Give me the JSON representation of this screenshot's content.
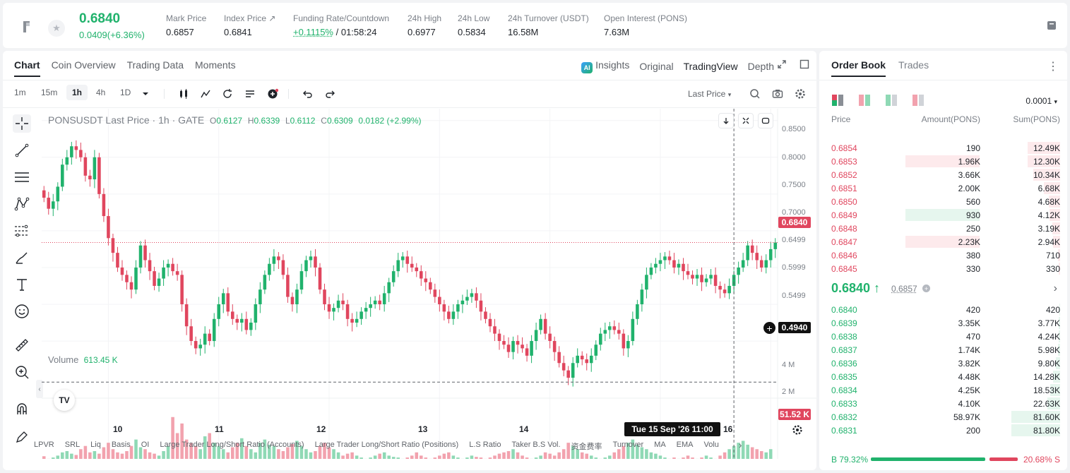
{
  "ticker": {
    "price": "0.6840",
    "change": "0.0409(+6.36%)",
    "stats": [
      {
        "label": "Mark Price",
        "value": "0.6857"
      },
      {
        "label": "Index Price ↗",
        "value": "0.6841"
      },
      {
        "label": "Funding Rate/Countdown",
        "value_green": "+0.1115%",
        "value": "/ 01:58:24"
      },
      {
        "label": "24h High",
        "value": "0.6977"
      },
      {
        "label": "24h Low",
        "value": "0.5834"
      },
      {
        "label": "24h Turnover (USDT)",
        "value": "16.58M"
      },
      {
        "label": "Open Interest (PONS)",
        "value": "7.63M"
      }
    ]
  },
  "chart_tabs": [
    "Chart",
    "Coin Overview",
    "Trading Data",
    "Moments"
  ],
  "chart_views": {
    "insights": "Insights",
    "original": "Original",
    "tradingview": "TradingView",
    "depth": "Depth"
  },
  "intervals": [
    "1m",
    "15m",
    "1h",
    "4h",
    "1D"
  ],
  "price_type": "Last Price",
  "legend": {
    "title": "PONSUSDT Last Price · 1h · GATE",
    "o_label": "O",
    "o": "0.6127",
    "h_label": "H",
    "h": "0.6339",
    "l_label": "L",
    "l": "0.6112",
    "c_label": "C",
    "c": "0.6309",
    "chg": "0.0182 (+2.99%)"
  },
  "volume": {
    "label": "Volume",
    "value": "613.45 K",
    "last_tag": "51.52 K"
  },
  "price_tags": {
    "last": "0.6840",
    "cross": "0.4940"
  },
  "crosshair_time": "Tue 15 Sep '26   11:00",
  "bottom_indicators": [
    "LPVR",
    "SRL",
    "Liq",
    "Basis",
    "OI",
    "Large Trader Long/Short Ratio (Accounts)",
    "Large Trader Long/Short Ratio (Positions)",
    "L.S Ratio",
    "Taker B.S Vol.",
    "资金费率",
    "Turnover",
    "MA",
    "EMA",
    "Volu"
  ],
  "chart_data": {
    "type": "candlestick",
    "title": "PONSUSDT Last Price · 1h · GATE",
    "x_labels": [
      "10",
      "11",
      "12",
      "13",
      "14",
      "15",
      "16"
    ],
    "x_label_index": [
      14,
      38,
      62,
      86,
      110,
      134,
      158
    ],
    "y_ticks": [
      "0.8500",
      "0.8000",
      "0.7500",
      "0.7000",
      "0.6499",
      "0.5999",
      "0.5499"
    ],
    "y_tick_values": [
      0.85,
      0.8,
      0.75,
      0.7,
      0.6499,
      0.5999,
      0.5499
    ],
    "ylim": [
      0.4722,
      0.8661
    ],
    "volume_ticks": [
      "4 M",
      "2 M"
    ],
    "volume_tick_values": [
      4000000,
      2000000
    ],
    "volume_max": 4800000,
    "closes": [
      0.745,
      0.73,
      0.74,
      0.76,
      0.79,
      0.8,
      0.815,
      0.81,
      0.8,
      0.775,
      0.77,
      0.8,
      0.75,
      0.72,
      0.69,
      0.67,
      0.65,
      0.64,
      0.63,
      0.62,
      0.65,
      0.68,
      0.66,
      0.645,
      0.625,
      0.635,
      0.65,
      0.655,
      0.645,
      0.64,
      0.6,
      0.57,
      0.55,
      0.54,
      0.545,
      0.56,
      0.55,
      0.58,
      0.6,
      0.615,
      0.59,
      0.58,
      0.575,
      0.58,
      0.565,
      0.575,
      0.6,
      0.62,
      0.64,
      0.655,
      0.665,
      0.66,
      0.64,
      0.61,
      0.6,
      0.62,
      0.645,
      0.66,
      0.665,
      0.65,
      0.62,
      0.6,
      0.59,
      0.595,
      0.605,
      0.6,
      0.58,
      0.575,
      0.58,
      0.59,
      0.595,
      0.6,
      0.605,
      0.6,
      0.615,
      0.63,
      0.645,
      0.66,
      0.665,
      0.655,
      0.65,
      0.645,
      0.635,
      0.63,
      0.62,
      0.61,
      0.6,
      0.59,
      0.58,
      0.59,
      0.6,
      0.605,
      0.61,
      0.615,
      0.605,
      0.59,
      0.58,
      0.57,
      0.56,
      0.55,
      0.545,
      0.535,
      0.55,
      0.545,
      0.54,
      0.53,
      0.55,
      0.565,
      0.58,
      0.56,
      0.55,
      0.535,
      0.52,
      0.51,
      0.5,
      0.52,
      0.53,
      0.525,
      0.52,
      0.53,
      0.545,
      0.56,
      0.565,
      0.57,
      0.565,
      0.56,
      0.54,
      0.55,
      0.58,
      0.6,
      0.62,
      0.64,
      0.65,
      0.655,
      0.66,
      0.665,
      0.66,
      0.65,
      0.655,
      0.645,
      0.64,
      0.635,
      0.64,
      0.63,
      0.635,
      0.64,
      0.625,
      0.62,
      0.615,
      0.625,
      0.64,
      0.65,
      0.66,
      0.68,
      0.67,
      0.66,
      0.65,
      0.66,
      0.675,
      0.684
    ],
    "volume_fracs": [
      0.14,
      0.1,
      0.12,
      0.15,
      0.2,
      0.22,
      0.18,
      0.16,
      0.25,
      0.3,
      0.2,
      0.22,
      0.18,
      0.28,
      0.35,
      0.25,
      0.2,
      0.18,
      0.22,
      0.3,
      0.4,
      0.28,
      0.25,
      0.2,
      0.18,
      0.15,
      0.22,
      0.3,
      0.75,
      0.5,
      0.65,
      0.4,
      0.35,
      0.3,
      0.25,
      0.45,
      0.5,
      0.35,
      0.3,
      0.25,
      0.2,
      0.28,
      0.35,
      0.42,
      0.3,
      0.25,
      0.2,
      0.35,
      0.4,
      0.32,
      0.3,
      0.25,
      0.22,
      0.28,
      0.33,
      0.38,
      0.3,
      0.25,
      0.2,
      0.22,
      0.3,
      0.35,
      0.28,
      0.25,
      0.2,
      0.15,
      0.18,
      0.2,
      0.15,
      0.12,
      0.1,
      0.12,
      0.15,
      0.18,
      0.2,
      0.15,
      0.13,
      0.12,
      0.1,
      0.12,
      0.15,
      0.2,
      0.15,
      0.12,
      0.1,
      0.12,
      0.15,
      0.18,
      0.2,
      0.15,
      0.12,
      0.1,
      0.12,
      0.15,
      0.13,
      0.12,
      0.1,
      0.12,
      0.15,
      0.18,
      0.2,
      0.22,
      0.25,
      0.2,
      0.15,
      0.12,
      0.1,
      0.12,
      0.15,
      0.2,
      0.18,
      0.15,
      0.2,
      0.25,
      0.35,
      0.3,
      0.25,
      0.2,
      0.18,
      0.15,
      0.12,
      0.1,
      0.12,
      0.15,
      0.2,
      0.25,
      0.3,
      0.35,
      0.4,
      0.32,
      0.28,
      0.25,
      0.2,
      0.18,
      0.15,
      0.12,
      0.1,
      0.12,
      0.1,
      0.12,
      0.15,
      0.12,
      0.1,
      0.12,
      0.15,
      0.12,
      0.1,
      0.15,
      0.2,
      0.25,
      0.3,
      0.35,
      0.38,
      0.32,
      0.28,
      0.25,
      0.22,
      0.2,
      0.25,
      0.02
    ],
    "last_price": 0.684,
    "crosshair_price": 0.494
  },
  "order_book": {
    "tabs": [
      "Order Book",
      "Trades"
    ],
    "precision": "0.0001",
    "columns": [
      "Price",
      "Amount(PONS)",
      "Sum(PONS)"
    ],
    "asks": [
      {
        "price": "0.6854",
        "amount": "190",
        "sum": "12.49K",
        "amt_frac": 0,
        "sum_frac": 0.4,
        "hl": ""
      },
      {
        "price": "0.6853",
        "amount": "1.96K",
        "sum": "12.30K",
        "amt_frac": 0.35,
        "sum_frac": 0.4,
        "hl": "r"
      },
      {
        "price": "0.6852",
        "amount": "3.66K",
        "sum": "10.34K",
        "amt_frac": 0,
        "sum_frac": 0.33,
        "hl": ""
      },
      {
        "price": "0.6851",
        "amount": "2.00K",
        "sum": "6.68K",
        "amt_frac": 0,
        "sum_frac": 0.2,
        "hl": ""
      },
      {
        "price": "0.6850",
        "amount": "560",
        "sum": "4.68K",
        "amt_frac": 0,
        "sum_frac": 0.14,
        "hl": ""
      },
      {
        "price": "0.6849",
        "amount": "930",
        "sum": "4.12K",
        "amt_frac": 0.35,
        "sum_frac": 0.13,
        "hl": "g"
      },
      {
        "price": "0.6848",
        "amount": "250",
        "sum": "3.19K",
        "amt_frac": 0,
        "sum_frac": 0.1,
        "hl": ""
      },
      {
        "price": "0.6847",
        "amount": "2.23K",
        "sum": "2.94K",
        "amt_frac": 0.35,
        "sum_frac": 0.09,
        "hl": "r"
      },
      {
        "price": "0.6846",
        "amount": "380",
        "sum": "710",
        "amt_frac": 0,
        "sum_frac": 0.03,
        "hl": ""
      },
      {
        "price": "0.6845",
        "amount": "330",
        "sum": "330",
        "amt_frac": 0,
        "sum_frac": 0.02,
        "hl": ""
      }
    ],
    "mid_price": "0.6840 ↑",
    "mark_price": "0.6857",
    "bids": [
      {
        "price": "0.6840",
        "amount": "420",
        "sum": "420",
        "sum_frac": 0.01
      },
      {
        "price": "0.6839",
        "amount": "3.35K",
        "sum": "3.77K",
        "sum_frac": 0.02
      },
      {
        "price": "0.6838",
        "amount": "470",
        "sum": "4.24K",
        "sum_frac": 0.02
      },
      {
        "price": "0.6837",
        "amount": "1.74K",
        "sum": "5.98K",
        "sum_frac": 0.03
      },
      {
        "price": "0.6836",
        "amount": "3.82K",
        "sum": "9.80K",
        "sum_frac": 0.05
      },
      {
        "price": "0.6835",
        "amount": "4.48K",
        "sum": "14.28K",
        "sum_frac": 0.09
      },
      {
        "price": "0.6834",
        "amount": "4.25K",
        "sum": "18.53K",
        "sum_frac": 0.12
      },
      {
        "price": "0.6833",
        "amount": "4.10K",
        "sum": "22.63K",
        "sum_frac": 0.16
      },
      {
        "price": "0.6832",
        "amount": "58.97K",
        "sum": "81.60K",
        "sum_frac": 0.6
      },
      {
        "price": "0.6831",
        "amount": "200",
        "sum": "81.80K",
        "sum_frac": 0.6
      }
    ],
    "buy_ratio": "B 79.32%",
    "sell_ratio": "20.68% S",
    "buy_frac": 0.7932
  },
  "colors": {
    "up": "#20b26c",
    "down": "#e0465e",
    "up_light": "#8fd9b5",
    "down_light": "#f2a2ae"
  }
}
